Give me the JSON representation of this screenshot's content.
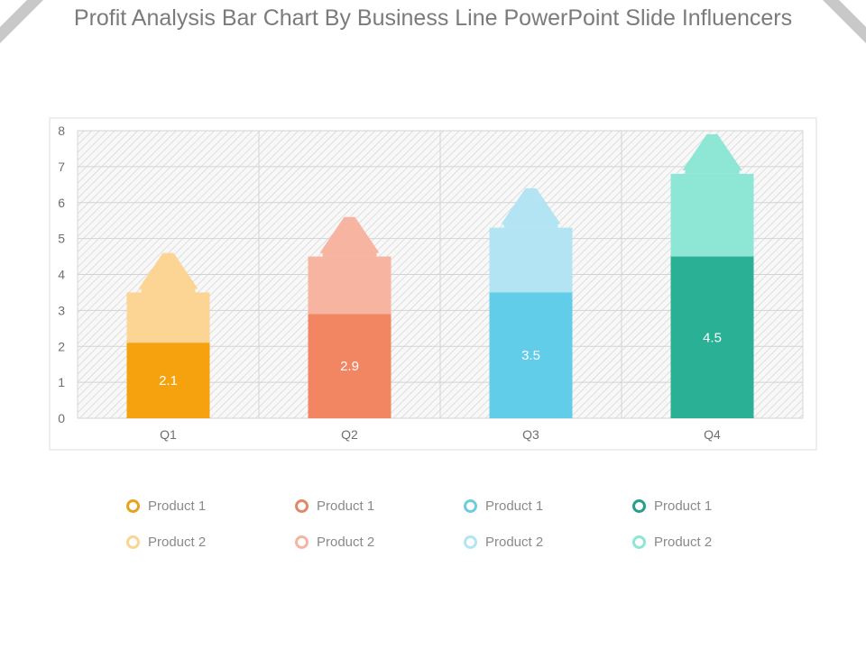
{
  "chart_data": {
    "type": "bar",
    "title": "Profit Analysis Bar Chart By Business Line PowerPoint Slide Influencers",
    "categories": [
      "Q1",
      "Q2",
      "Q3",
      "Q4"
    ],
    "series": [
      {
        "name": "Product 1",
        "values": [
          2.1,
          2.9,
          3.5,
          4.5
        ]
      },
      {
        "name": "Product 2",
        "values": [
          3.5,
          4.5,
          5.3,
          6.8
        ]
      }
    ],
    "data_labels": [
      "2.1",
      "2.9",
      "3.5",
      "4.5"
    ],
    "ylim": [
      0,
      8
    ],
    "yticks": [
      0,
      1,
      2,
      3,
      4,
      5,
      6,
      7,
      8
    ],
    "grid": true,
    "stacked_arrow_style": true,
    "arrow_tip_values": [
      4.7,
      5.7,
      6.5,
      8.0
    ],
    "legend_position": "bottom",
    "colors": {
      "product1": [
        "#f6a20e",
        "#f28662",
        "#62cde9",
        "#2ab095"
      ],
      "product2": [
        "#fcd494",
        "#f7b5a1",
        "#b3e4f3",
        "#8ee6d4"
      ],
      "legend1": [
        "#e9a21e",
        "#e3876a",
        "#6fcbe0",
        "#2a9e88"
      ],
      "legend2": [
        "#fcd494",
        "#f7b5a1",
        "#b3e4f3",
        "#8ee6d4"
      ]
    }
  },
  "legend": {
    "columns": [
      {
        "p1": "Product 1",
        "p2": "Product 2"
      },
      {
        "p1": "Product 1",
        "p2": "Product 2"
      },
      {
        "p1": "Product 1",
        "p2": "Product 2"
      },
      {
        "p1": "Product 1",
        "p2": "Product 2"
      }
    ]
  }
}
